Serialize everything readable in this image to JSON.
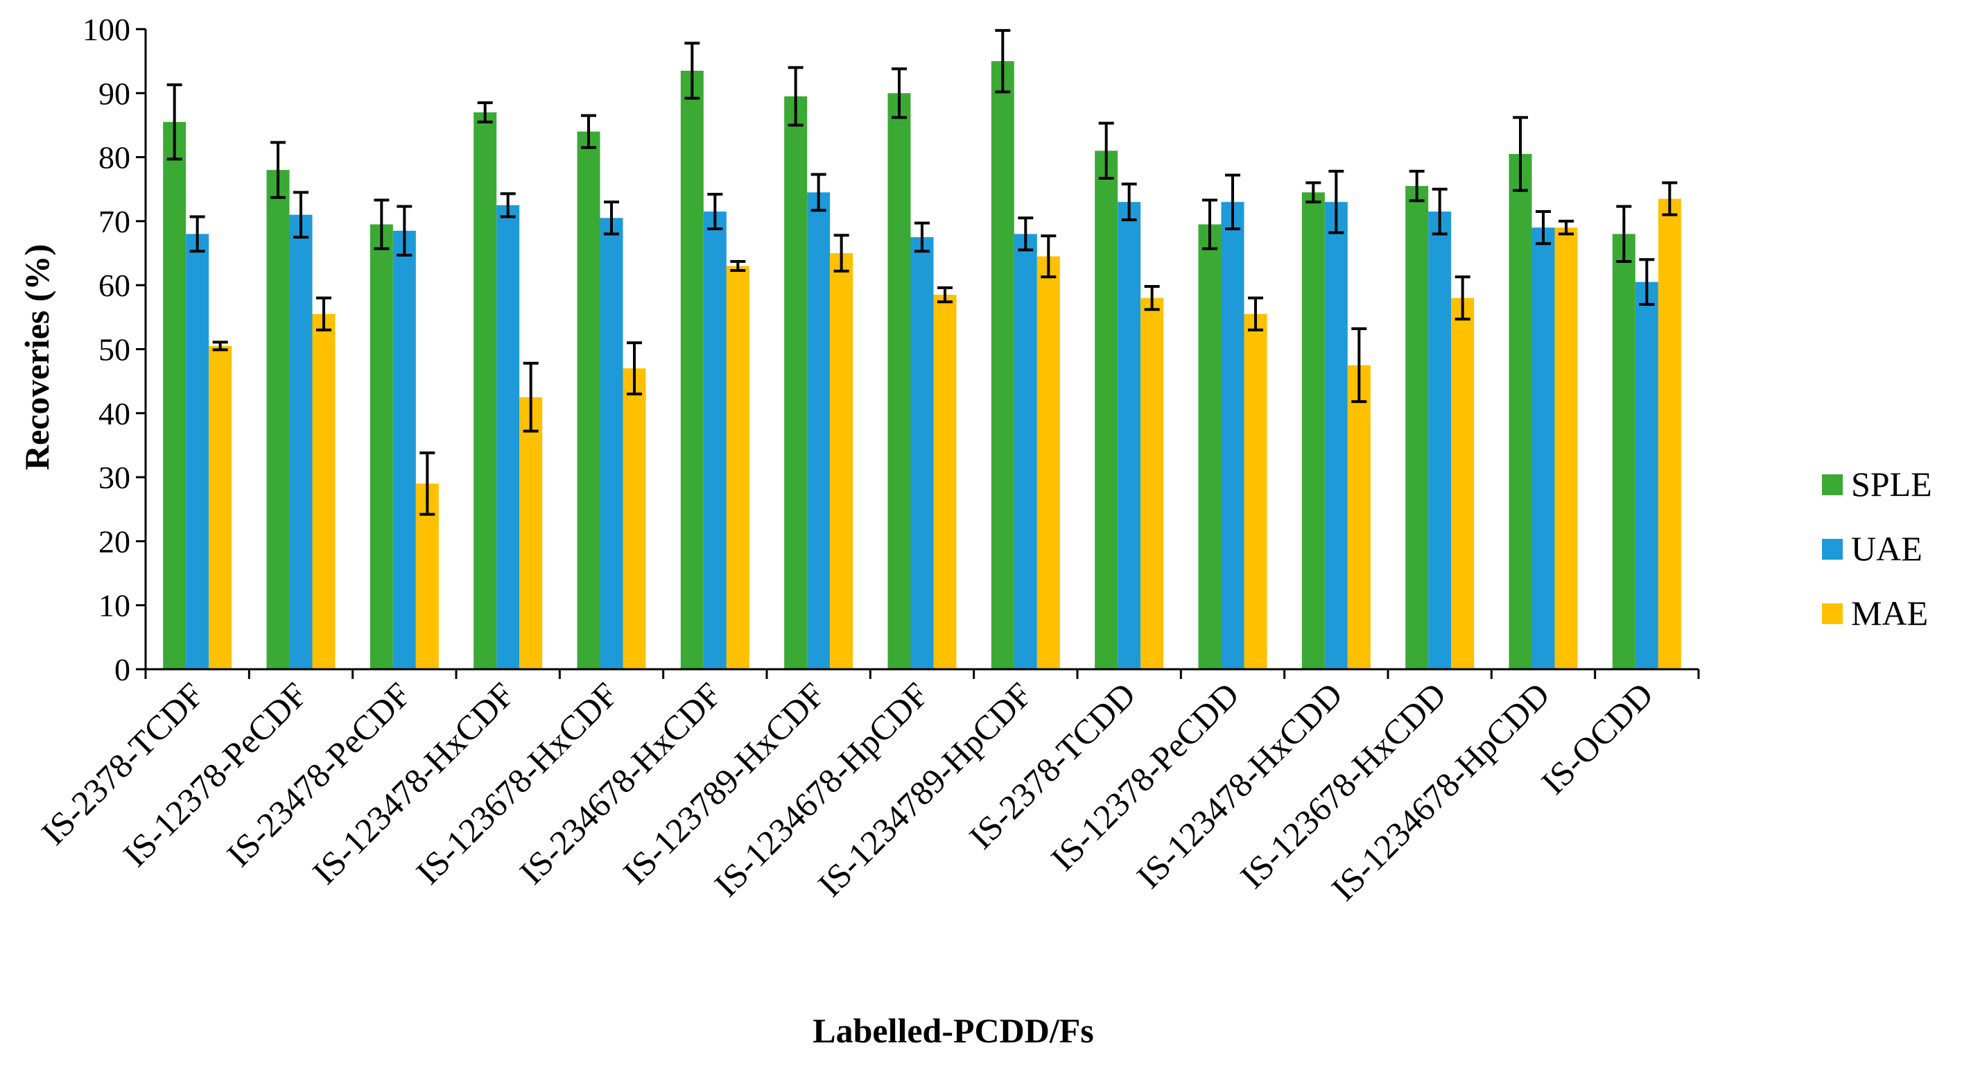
{
  "chart_data": {
    "type": "bar",
    "title": "",
    "xlabel": "Labelled-PCDD/Fs",
    "ylabel": "Recoveries (%)",
    "ylim": [
      0,
      100
    ],
    "yticks": [
      0,
      10,
      20,
      30,
      40,
      50,
      60,
      70,
      80,
      90,
      100
    ],
    "grid": false,
    "legend_position": "right",
    "categories": [
      "IS-2378-TCDF",
      "IS-12378-PeCDF",
      "IS-23478-PeCDF",
      "IS-123478-HxCDF",
      "IS-123678-HxCDF",
      "IS-234678-HxCDF",
      "IS-123789-HxCDF",
      "IS-1234678-HpCDF",
      "IS-1234789-HpCDF",
      "IS-2378-TCDD",
      "IS-12378-PeCDD",
      "IS-123478-HxCDD",
      "IS-123678-HxCDD",
      "IS-1234678-HpCDD",
      "IS-OCDD"
    ],
    "series": [
      {
        "name": "SPLE",
        "color": "#3BAA35",
        "values": [
          85.5,
          78,
          69.5,
          87,
          84,
          93.5,
          89.5,
          90,
          95,
          81,
          69.5,
          74.5,
          75.5,
          80.5,
          68
        ],
        "errors": [
          5.8,
          4.3,
          3.8,
          1.5,
          2.5,
          4.3,
          4.5,
          3.8,
          4.8,
          4.3,
          3.8,
          1.5,
          2.3,
          5.7,
          4.3
        ]
      },
      {
        "name": "UAE",
        "color": "#1F9AD8",
        "values": [
          68,
          71,
          68.5,
          72.5,
          70.5,
          71.5,
          74.5,
          67.5,
          68,
          73,
          73,
          73,
          71.5,
          69,
          60.5
        ],
        "errors": [
          2.7,
          3.5,
          3.8,
          1.8,
          2.5,
          2.7,
          2.8,
          2.2,
          2.5,
          2.8,
          4.2,
          4.8,
          3.5,
          2.5,
          3.5
        ]
      },
      {
        "name": "MAE",
        "color": "#FFC000",
        "values": [
          50.5,
          55.5,
          29,
          42.5,
          47,
          63,
          65,
          58.5,
          64.5,
          58,
          55.5,
          47.5,
          58,
          69,
          73.5
        ],
        "errors": [
          0.6,
          2.5,
          4.8,
          5.3,
          4,
          0.7,
          2.8,
          1.1,
          3.2,
          1.8,
          2.5,
          5.7,
          3.3,
          1,
          2.5
        ]
      }
    ]
  }
}
